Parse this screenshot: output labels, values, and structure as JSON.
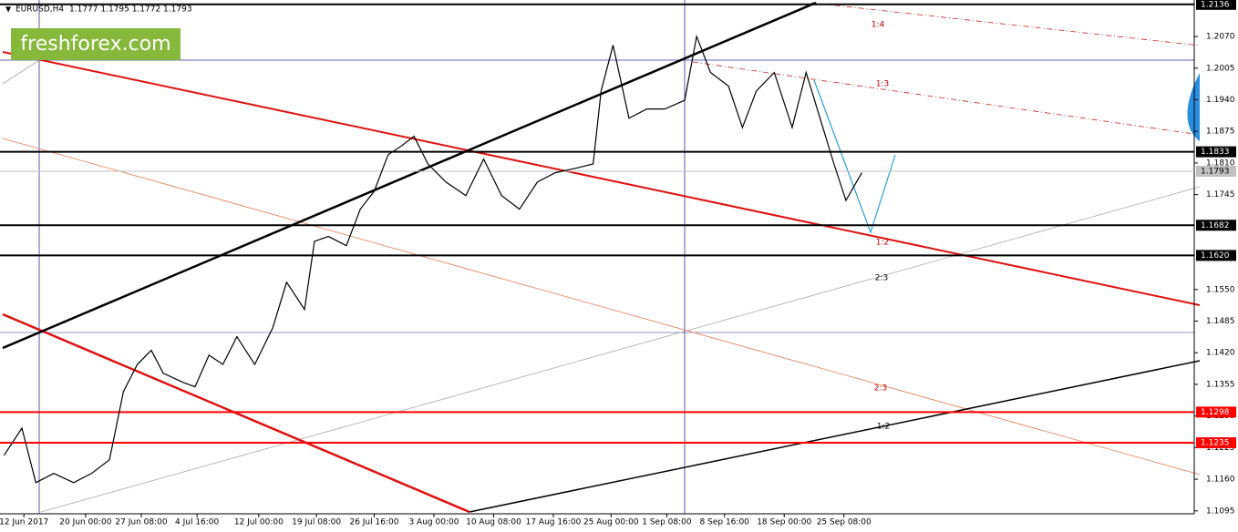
{
  "chart_data": {
    "type": "line",
    "title": "EURUSD,H4",
    "header_values": "1.1777 1.1795 1.1772 1.1793",
    "logo": "freshforex.com",
    "color": "#000000",
    "x": [
      2,
      11,
      18,
      27,
      37,
      46,
      55,
      62,
      69,
      76,
      82,
      92,
      98,
      105,
      112,
      119,
      128,
      137,
      144,
      153,
      158,
      165,
      174,
      181,
      188,
      195,
      202,
      208,
      215,
      224,
      234,
      243,
      252,
      261,
      270,
      279,
      289,
      298,
      302,
      308,
      316,
      325,
      334,
      344,
      350,
      357,
      366,
      373,
      380,
      389,
      398,
      405,
      412,
      419,
      425,
      433
    ],
    "values": [
      1.1209,
      1.1265,
      1.1153,
      1.1172,
      1.1153,
      1.1172,
      1.12,
      1.134,
      1.1396,
      1.1425,
      1.1378,
      1.1359,
      1.135,
      1.1415,
      1.1396,
      1.1453,
      1.1396,
      1.1471,
      1.1565,
      1.1509,
      1.1649,
      1.1659,
      1.164,
      1.1715,
      1.1752,
      1.1827,
      1.1846,
      1.1865,
      1.1808,
      1.1771,
      1.1743,
      1.1818,
      1.1743,
      1.1715,
      1.1771,
      1.179,
      1.1799,
      1.1808,
      1.1958,
      1.2052,
      1.1902,
      1.1921,
      1.1921,
      1.1939,
      1.207,
      1.1996,
      1.1968,
      1.1883,
      1.1958,
      1.1996,
      1.1883,
      1.1996,
      1.1902,
      1.1808,
      1.1733,
      1.179
    ],
    "xlim": [
      0,
      600
    ],
    "xticks": [
      {
        "value": 12,
        "label": "12 Jun 2017"
      },
      {
        "value": 43,
        "label": "20 Jun 00:00"
      },
      {
        "value": 71,
        "label": "27 Jun 08:00"
      },
      {
        "value": 99,
        "label": "4 Jul 16:00"
      },
      {
        "value": 130,
        "label": "12 Jul 00:00"
      },
      {
        "value": 159,
        "label": "19 Jul 08:00"
      },
      {
        "value": 188,
        "label": "26 Jul 16:00"
      },
      {
        "value": 218,
        "label": "3 Aug 00:00"
      },
      {
        "value": 248,
        "label": "10 Aug 08:00"
      },
      {
        "value": 278,
        "label": "17 Aug 16:00"
      },
      {
        "value": 307,
        "label": "25 Aug 00:00"
      },
      {
        "value": 335,
        "label": "1 Sep 08:00"
      },
      {
        "value": 364,
        "label": "8 Sep 16:00"
      },
      {
        "value": 394,
        "label": "18 Sep 00:00"
      },
      {
        "value": 424,
        "label": "25 Sep 08:00"
      }
    ],
    "ylim": [
      1.1089,
      1.2145
    ],
    "yticks": [
      {
        "value": 1.207,
        "label": "1.2070"
      },
      {
        "value": 1.2005,
        "label": "1.2005"
      },
      {
        "value": 1.194,
        "label": "1.1940"
      },
      {
        "value": 1.1875,
        "label": "1.1875"
      },
      {
        "value": 1.181,
        "label": "1.1810"
      },
      {
        "value": 1.1745,
        "label": "1.1745"
      },
      {
        "value": 1.155,
        "label": "1.1550"
      },
      {
        "value": 1.1485,
        "label": "1.1485"
      },
      {
        "value": 1.142,
        "label": "1.1420"
      },
      {
        "value": 1.1355,
        "label": "1.1355"
      },
      {
        "value": 1.129,
        "label": "1.1290"
      },
      {
        "value": 1.1225,
        "label": "1.1225"
      },
      {
        "value": 1.116,
        "label": "1.1160"
      },
      {
        "value": 1.1095,
        "label": "1.1095"
      }
    ],
    "levels": [
      {
        "value": 1.2136,
        "label": "1.2136",
        "color": "#000000"
      },
      {
        "value": 1.1833,
        "label": "1.1833",
        "color": "#000000"
      },
      {
        "value": 1.1793,
        "label": "1.1793",
        "color": "#c0c0c0"
      },
      {
        "value": 1.1682,
        "label": "1.1682",
        "color": "#000000"
      },
      {
        "value": 1.162,
        "label": "1.1620",
        "color": "#000000"
      },
      {
        "value": 1.1298,
        "label": "1.1298",
        "color": "#ff0000"
      },
      {
        "value": 1.1235,
        "label": "1.1235",
        "color": "#ff0000"
      }
    ],
    "annotations": [
      {
        "text": "1:4",
        "color": "#c00000"
      },
      {
        "text": "1:3",
        "color": "#c00000"
      },
      {
        "text": "1:2",
        "color": "#c00000"
      },
      {
        "text": "2:3",
        "color": "#000000"
      },
      {
        "text": "2:3",
        "color": "#c00000"
      },
      {
        "text": "1:2",
        "color": "#000000"
      }
    ]
  }
}
